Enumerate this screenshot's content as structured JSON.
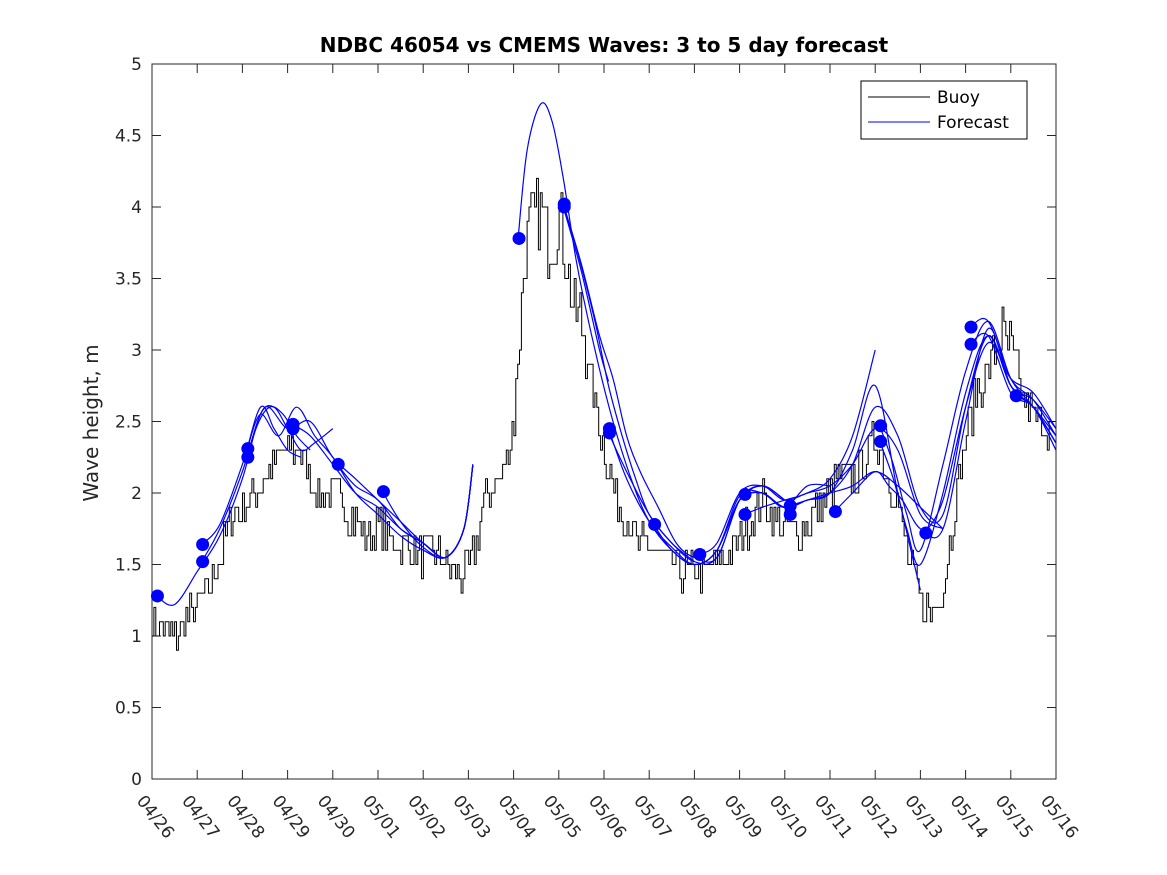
{
  "chart_data": {
    "type": "line",
    "title": "NDBC 46054 vs CMEMS Waves: 3 to 5 day forecast",
    "xlabel": "",
    "ylabel": "Wave height, m",
    "xlim": [
      0,
      20
    ],
    "ylim": [
      0,
      5
    ],
    "x_tick_values": [
      0,
      1,
      2,
      3,
      4,
      5,
      6,
      7,
      8,
      9,
      10,
      11,
      12,
      13,
      14,
      15,
      16,
      17,
      18,
      19,
      20
    ],
    "x_tick_labels": [
      "04/26",
      "04/27",
      "04/28",
      "04/29",
      "04/30",
      "05/01",
      "05/02",
      "05/03",
      "05/04",
      "05/05",
      "05/06",
      "05/07",
      "05/08",
      "05/09",
      "05/10",
      "05/11",
      "05/12",
      "05/13",
      "05/14",
      "05/15",
      "05/16"
    ],
    "y_ticks": [
      0,
      0.5,
      1,
      1.5,
      2,
      2.5,
      3,
      3.5,
      4,
      4.5,
      5
    ],
    "y_tick_labels": [
      "0",
      "0.5",
      "1",
      "1.5",
      "2",
      "2.5",
      "3",
      "3.5",
      "4",
      "4.5",
      "5"
    ],
    "grid": false,
    "legend_position": "top-right",
    "colors": {
      "buoy": "#000000",
      "forecast": "#0000ff",
      "axis": "#262626"
    },
    "series": [
      {
        "name": "Buoy",
        "role": "observed",
        "x_step": 0.0417,
        "x": [
          0,
          0.25,
          0.5,
          0.75,
          1,
          1.25,
          1.5,
          1.75,
          2,
          2.25,
          2.5,
          2.75,
          3,
          3.25,
          3.5,
          3.75,
          4,
          4.25,
          4.5,
          4.75,
          5,
          5.25,
          5.5,
          5.75,
          6,
          6.25,
          6.5,
          6.75,
          7,
          7.25,
          7.5,
          7.75,
          8,
          8.15,
          8.25,
          8.35,
          8.5,
          8.65,
          8.75,
          8.9,
          9,
          9.15,
          9.3,
          9.5,
          9.75,
          10,
          10.25,
          10.5,
          10.75,
          11,
          11.25,
          11.5,
          11.75,
          12,
          12.25,
          12.5,
          12.75,
          13,
          13.25,
          13.5,
          13.75,
          14,
          14.25,
          14.5,
          14.75,
          15,
          15.25,
          15.5,
          15.75,
          16,
          16.25,
          16.5,
          16.75,
          17,
          17.25,
          17.5,
          17.75,
          18,
          18.25,
          18.5,
          18.75,
          19,
          19.25,
          19.5,
          19.75,
          20
        ],
        "y": [
          1.1,
          1.05,
          1.0,
          1.1,
          1.2,
          1.35,
          1.55,
          1.8,
          1.9,
          2.0,
          2.1,
          2.2,
          2.3,
          2.3,
          2.1,
          1.95,
          2.0,
          1.9,
          1.8,
          1.7,
          1.8,
          1.7,
          1.6,
          1.6,
          1.55,
          1.6,
          1.5,
          1.4,
          1.45,
          1.8,
          2.05,
          2.15,
          2.5,
          3.2,
          3.7,
          3.9,
          3.95,
          3.9,
          3.7,
          3.8,
          3.95,
          3.7,
          3.3,
          3.2,
          2.7,
          2.3,
          2.0,
          1.8,
          1.65,
          1.6,
          1.55,
          1.5,
          1.45,
          1.45,
          1.45,
          1.5,
          1.6,
          1.7,
          1.8,
          1.95,
          1.8,
          1.75,
          1.7,
          1.8,
          1.9,
          2.0,
          2.1,
          2.1,
          2.2,
          2.4,
          2.15,
          1.9,
          1.5,
          1.25,
          1.15,
          1.35,
          1.9,
          2.4,
          2.7,
          2.9,
          3.1,
          3.0,
          2.7,
          2.5,
          2.5,
          2.4
        ]
      },
      {
        "name": "Forecast",
        "role": "forecast runs",
        "runs": [
          {
            "x": [
              0.1,
              0.5,
              1,
              1.5,
              2,
              2.3,
              2.6,
              2.9,
              3.2,
              3.5
            ],
            "y": [
              1.28,
              1.22,
              1.45,
              1.7,
              2.1,
              2.45,
              2.6,
              2.55,
              2.4,
              2.3
            ]
          },
          {
            "x": [
              1.1,
              1.5,
              2,
              2.4,
              2.7,
              3,
              3.3,
              3.6,
              4
            ],
            "y": [
              1.52,
              1.75,
              2.15,
              2.55,
              2.6,
              2.45,
              2.3,
              2.35,
              2.45
            ]
          },
          {
            "x": [
              1.1,
              1.5,
              2,
              2.4,
              2.7,
              3,
              3.3
            ],
            "y": [
              1.64,
              1.78,
              2.2,
              2.6,
              2.45,
              2.3,
              2.25
            ]
          },
          {
            "x": [
              2.1,
              2.4,
              2.8,
              3.2,
              3.6,
              4,
              4.5,
              5,
              5.5,
              6,
              6.5,
              6.9,
              7.1
            ],
            "y": [
              2.3,
              2.55,
              2.4,
              2.6,
              2.4,
              2.25,
              2.0,
              1.85,
              1.7,
              1.6,
              1.55,
              1.75,
              2.2
            ]
          },
          {
            "x": [
              2.1,
              2.5,
              3,
              3.5,
              4,
              4.5,
              5,
              5.5,
              6,
              6.5,
              6.9,
              7.1
            ],
            "y": [
              2.25,
              2.6,
              2.45,
              2.5,
              2.25,
              2.1,
              1.95,
              1.8,
              1.65,
              1.55,
              1.75,
              2.2
            ]
          },
          {
            "x": [
              3.1,
              3.5,
              4,
              4.5,
              5,
              5.5,
              6,
              6.5,
              6.9,
              7.1
            ],
            "y": [
              2.48,
              2.4,
              2.2,
              2.0,
              1.9,
              1.75,
              1.65,
              1.55,
              1.75,
              2.2
            ]
          },
          {
            "x": [
              4.1,
              4.5,
              5,
              5.5,
              6,
              6.5,
              6.9,
              7.1
            ],
            "y": [
              2.2,
              2.05,
              1.95,
              1.75,
              1.65,
              1.55,
              1.75,
              2.2
            ]
          },
          {
            "x": [
              5.1,
              5.5,
              6,
              6.5,
              6.9,
              7.1
            ],
            "y": [
              2.01,
              1.8,
              1.62,
              1.55,
              1.75,
              2.2
            ]
          },
          {
            "x": [
              8.1,
              8.3,
              8.6,
              8.85,
              9.1,
              9.4,
              9.8,
              10.2,
              10.6,
              11,
              11.5,
              12,
              12.5,
              13,
              13.5,
              14
            ],
            "y": [
              3.78,
              4.4,
              4.72,
              4.6,
              4.2,
              3.6,
              3.0,
              2.5,
              2.1,
              1.8,
              1.6,
              1.5,
              1.6,
              1.95,
              2.05,
              1.95
            ]
          },
          {
            "x": [
              9.1,
              9.4,
              9.8,
              10.1,
              10.4,
              10.7,
              11,
              11.5,
              12,
              12.5,
              13,
              13.5,
              14
            ],
            "y": [
              4.0,
              3.7,
              3.2,
              2.75,
              2.4,
              2.1,
              1.85,
              1.65,
              1.52,
              1.55,
              1.95,
              2.05,
              1.95
            ]
          },
          {
            "x": [
              9.1,
              9.5,
              9.9,
              10.2,
              10.5,
              10.8,
              11.2,
              11.6,
              12,
              12.5,
              13,
              13.5,
              14
            ],
            "y": [
              4.02,
              3.6,
              3.1,
              2.8,
              2.4,
              2.15,
              1.9,
              1.65,
              1.55,
              1.55,
              1.95,
              2.05,
              1.95
            ]
          },
          {
            "x": [
              9.1,
              9.5,
              9.9,
              10.1
            ],
            "y": [
              4.0,
              3.55,
              3.0,
              2.78
            ]
          },
          {
            "x": [
              10.1,
              10.5,
              11,
              11.5,
              12,
              12.5,
              13,
              13.5,
              14,
              14.5,
              15,
              15.5,
              16,
              16.5,
              17,
              17.5
            ],
            "y": [
              2.45,
              2.1,
              1.8,
              1.62,
              1.5,
              1.6,
              1.95,
              2.0,
              1.9,
              1.95,
              2.0,
              2.05,
              2.15,
              2.05,
              1.9,
              1.75
            ]
          },
          {
            "x": [
              10.1,
              10.5,
              11,
              11.5,
              12
            ],
            "y": [
              2.42,
              2.15,
              1.85,
              1.65,
              1.52
            ]
          },
          {
            "x": [
              11.1,
              11.5,
              12,
              12.5,
              13,
              13.5,
              14,
              14.5,
              15
            ],
            "y": [
              1.78,
              1.6,
              1.5,
              1.6,
              1.98,
              2.0,
              1.9,
              2.05,
              2.05
            ]
          },
          {
            "x": [
              12.1,
              12.5,
              13,
              13.5,
              14,
              14.5,
              15,
              15.5,
              16,
              16.5,
              17,
              17.5
            ],
            "y": [
              1.57,
              1.65,
              2.0,
              2.05,
              1.95,
              2.0,
              2.05,
              2.2,
              2.45,
              2.3,
              1.85,
              1.75
            ]
          },
          {
            "x": [
              13.1,
              13.5,
              14,
              14.5,
              15,
              15.5,
              16,
              16.5,
              17,
              17.5,
              18,
              18.5,
              19,
              19.5,
              20
            ],
            "y": [
              1.99,
              2.0,
              1.9,
              1.95,
              2.0,
              2.2,
              2.6,
              2.4,
              1.9,
              1.85,
              2.6,
              3.1,
              2.75,
              2.6,
              2.35
            ]
          },
          {
            "x": [
              13.1,
              13.5,
              14,
              14.5,
              15,
              15.5,
              16
            ],
            "y": [
              1.85,
              1.9,
              1.95,
              2.0,
              2.1,
              2.4,
              3.0
            ]
          },
          {
            "x": [
              14.1,
              14.5,
              15,
              15.5,
              16,
              16.5,
              17
            ],
            "y": [
              1.91,
              1.95,
              2.0,
              2.3,
              2.75,
              2.0,
              1.32
            ]
          },
          {
            "x": [
              15.1,
              15.5,
              16,
              16.3,
              16.6,
              17,
              17.5,
              18,
              18.5,
              19,
              19.5,
              20
            ],
            "y": [
              1.87,
              2.0,
              2.15,
              2.05,
              1.95,
              1.75,
              1.75,
              2.5,
              3.15,
              2.75,
              2.6,
              2.4
            ]
          },
          {
            "x": [
              16.1,
              16.4,
              16.7,
              17,
              17.5,
              18,
              18.5,
              19,
              19.5,
              20
            ],
            "y": [
              2.47,
              2.2,
              1.85,
              1.6,
              2.2,
              2.85,
              3.2,
              2.8,
              2.6,
              2.35
            ]
          },
          {
            "x": [
              16.1,
              16.4,
              16.7,
              17,
              17.5,
              18,
              18.5,
              19,
              19.5,
              20
            ],
            "y": [
              2.36,
              2.1,
              1.75,
              1.5,
              2.0,
              2.7,
              3.1,
              2.75,
              2.65,
              2.45
            ]
          },
          {
            "x": [
              17.1,
              17.5,
              18,
              18.5,
              19,
              19.5,
              20
            ],
            "y": [
              1.72,
              1.95,
              2.6,
              3.05,
              2.8,
              2.7,
              2.45
            ]
          },
          {
            "x": [
              18.1,
              18.5,
              19,
              19.5,
              20
            ],
            "y": [
              3.16,
              3.2,
              2.8,
              2.65,
              2.4
            ]
          },
          {
            "x": [
              18.1,
              18.5,
              19,
              19.5,
              20
            ],
            "y": [
              3.04,
              3.1,
              2.7,
              2.6,
              2.3
            ]
          },
          {
            "x": [
              19.1,
              19.5,
              20
            ],
            "y": [
              2.68,
              2.6,
              2.35
            ]
          }
        ]
      }
    ],
    "markers": {
      "name": "Forecast start (dots)",
      "x": [
        0.12,
        1.12,
        1.12,
        2.12,
        2.12,
        3.12,
        3.12,
        4.12,
        5.12,
        8.12,
        9.12,
        9.12,
        10.12,
        10.12,
        11.12,
        12.12,
        13.12,
        13.12,
        14.12,
        14.12,
        15.12,
        16.12,
        16.12,
        17.12,
        18.12,
        18.12,
        19.12
      ],
      "y": [
        1.28,
        1.52,
        1.64,
        2.25,
        2.31,
        2.45,
        2.48,
        2.2,
        2.01,
        3.78,
        4.0,
        4.02,
        2.42,
        2.45,
        1.78,
        1.57,
        1.85,
        1.99,
        1.85,
        1.91,
        1.87,
        2.36,
        2.47,
        1.72,
        3.04,
        3.16,
        2.68
      ]
    },
    "legend": [
      {
        "label": "Buoy",
        "color": "#000000"
      },
      {
        "label": "Forecast",
        "color": "#0000ff"
      }
    ]
  }
}
